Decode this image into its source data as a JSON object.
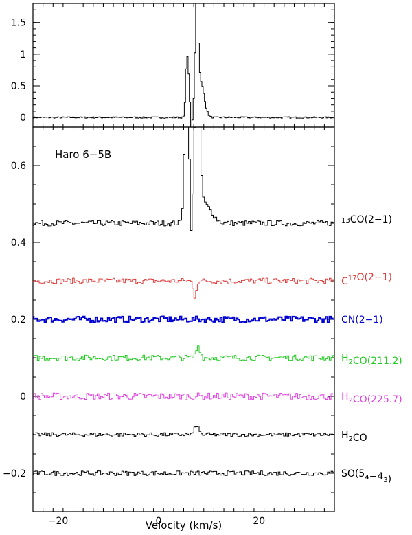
{
  "chart_data": [
    {
      "type": "line",
      "panel": "top",
      "title": "",
      "xlabel": "",
      "ylabel": "",
      "xlim": [
        -25,
        35
      ],
      "ylim": [
        -0.15,
        1.8
      ],
      "yticks": [
        0,
        0.5,
        1,
        1.5
      ],
      "ytick_labels": [
        "0",
        "0.5",
        "1",
        "1.5"
      ],
      "grid": false,
      "series": [
        {
          "color": "#000000",
          "noise": 0.012,
          "baseline": 0,
          "features": [
            {
              "v": 5.6,
              "amp": 0.78,
              "width": 0.22
            },
            {
              "v": 6.0,
              "amp": 0.55,
              "width": 0.25
            },
            {
              "v": 6.5,
              "amp": -0.3,
              "width": 0.18
            },
            {
              "v": 7.6,
              "amp": 1.75,
              "width": 0.3
            },
            {
              "v": 8.4,
              "amp": 0.55,
              "width": 0.7
            }
          ]
        }
      ]
    },
    {
      "type": "line",
      "panel": "bottom",
      "title": "",
      "annotation": "Haro 6-5B",
      "xlabel": "Velocity (km/s)",
      "ylabel": "",
      "xlim": [
        -25,
        35
      ],
      "ylim": [
        -0.3,
        0.7
      ],
      "xticks": [
        -20,
        0,
        20
      ],
      "xtick_labels": [
        "-20",
        "0",
        "20"
      ],
      "yticks": [
        -0.2,
        0,
        0.2,
        0.4,
        0.6
      ],
      "ytick_labels": [
        "-0.2",
        "0",
        "0.2",
        "0.4",
        "0.6"
      ],
      "grid": false,
      "series": [
        {
          "name_parts": [
            [
              "",
              "13"
            ],
            [
              "n",
              "CO(2-1)"
            ]
          ],
          "color": "#000000",
          "baseline": 0.45,
          "noise": 0.007,
          "features": [
            {
              "v": 5.6,
              "amp": 0.4,
              "width": 0.4
            },
            {
              "v": 6.6,
              "amp": -0.1,
              "width": 0.18
            },
            {
              "v": 7.7,
              "amp": 0.38,
              "width": 0.5
            },
            {
              "v": 9.0,
              "amp": 0.05,
              "width": 1.5
            }
          ]
        },
        {
          "name_parts": [
            [
              "n",
              "C"
            ],
            [
              "sup",
              "17"
            ],
            [
              "n",
              "O(2-1)"
            ]
          ],
          "color": "#e03c3c",
          "baseline": 0.3,
          "noise": 0.007,
          "features": [
            {
              "v": 7.2,
              "amp": -0.04,
              "width": 0.3
            }
          ]
        },
        {
          "name_parts": [
            [
              "n",
              "CN(2-1)"
            ]
          ],
          "color": "#0000d0",
          "baseline": 0.2,
          "noise": 0.008,
          "features": []
        },
        {
          "name_parts": [
            [
              "n",
              "H"
            ],
            [
              "sub",
              "2"
            ],
            [
              "n",
              "CO(211.2)"
            ]
          ],
          "color": "#22cc22",
          "baseline": 0.1,
          "noise": 0.007,
          "features": [
            {
              "v": 7.9,
              "amp": 0.03,
              "width": 0.4
            }
          ]
        },
        {
          "name_parts": [
            [
              "n",
              "H"
            ],
            [
              "sub",
              "2"
            ],
            [
              "n",
              "CO(225.7)"
            ]
          ],
          "color": "#e040e0",
          "baseline": 0.0,
          "noise": 0.009,
          "features": []
        },
        {
          "name_parts": [
            [
              "n",
              "H"
            ],
            [
              "sub",
              "2"
            ],
            [
              "n",
              "CO"
            ]
          ],
          "color": "#000000",
          "baseline": -0.1,
          "noise": 0.005,
          "features": [
            {
              "v": 7.6,
              "amp": 0.025,
              "width": 0.4
            }
          ]
        },
        {
          "name_parts": [
            [
              "n",
              "SO(5"
            ],
            [
              "sub",
              "4"
            ],
            [
              "n",
              "-4"
            ],
            [
              "sub",
              "3"
            ],
            [
              "n",
              ")"
            ]
          ],
          "color": "#000000",
          "baseline": -0.2,
          "noise": 0.006,
          "features": []
        }
      ]
    }
  ]
}
